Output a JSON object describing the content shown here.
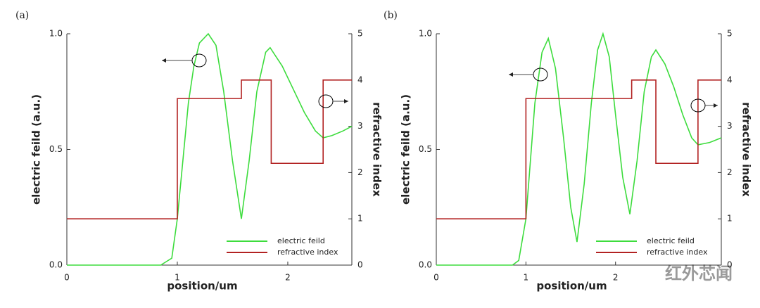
{
  "chart_data": [
    {
      "type": "line",
      "panel_label": "(a)",
      "x_label": "position/um",
      "y_label": "electric feild (a.u.)",
      "y2_label": "refractive index",
      "xlim": [
        0,
        2.58
      ],
      "xticks": [
        0,
        1,
        2
      ],
      "ylim": [
        0,
        1
      ],
      "yticks": [
        {
          "value": 0,
          "label": "0.0"
        },
        {
          "value": 0.5,
          "label": "0.5"
        },
        {
          "value": 1,
          "label": "1.0"
        }
      ],
      "y2lim": [
        0,
        5
      ],
      "y2ticks": [
        0,
        1,
        2,
        3,
        4,
        5
      ],
      "legend": "lower right",
      "series": [
        {
          "name": "electric feild",
          "color": "#3ddc3d",
          "x": [
            0,
            0.85,
            0.95,
            1.0,
            1.05,
            1.1,
            1.15,
            1.2,
            1.28,
            1.35,
            1.42,
            1.5,
            1.58,
            1.65,
            1.72,
            1.8,
            1.84,
            1.95,
            2.05,
            2.15,
            2.25,
            2.32,
            2.4,
            2.5,
            2.58
          ],
          "values": [
            0,
            0,
            0.03,
            0.2,
            0.45,
            0.7,
            0.86,
            0.96,
            1.0,
            0.95,
            0.75,
            0.45,
            0.2,
            0.45,
            0.75,
            0.92,
            0.94,
            0.86,
            0.76,
            0.66,
            0.58,
            0.55,
            0.56,
            0.58,
            0.6
          ]
        },
        {
          "name": "refractive index",
          "color": "#b22222",
          "axis": "y2",
          "x": [
            0,
            1,
            1,
            1.58,
            1.58,
            1.85,
            1.85,
            2.32,
            2.32,
            2.58
          ],
          "values": [
            1,
            1,
            3.6,
            3.6,
            4,
            4,
            2.2,
            2.2,
            4,
            4
          ]
        }
      ]
    },
    {
      "type": "line",
      "panel_label": "(b)",
      "x_label": "position/um",
      "y_label": "electric feild (a.u.)",
      "y2_label": "refractive index",
      "xlim": [
        0,
        3.18
      ],
      "xticks": [
        0,
        1,
        2
      ],
      "ylim": [
        0,
        1
      ],
      "yticks": [
        {
          "value": 0,
          "label": "0.0"
        },
        {
          "value": 0.5,
          "label": "0.5"
        },
        {
          "value": 1,
          "label": "1.0"
        }
      ],
      "y2lim": [
        0,
        5
      ],
      "y2ticks": [
        0,
        1,
        2,
        3,
        4,
        5
      ],
      "legend": "lower right",
      "series": [
        {
          "name": "electric feild",
          "color": "#3ddc3d",
          "x": [
            0,
            0.85,
            0.92,
            1.0,
            1.05,
            1.1,
            1.18,
            1.25,
            1.33,
            1.42,
            1.5,
            1.57,
            1.65,
            1.73,
            1.8,
            1.86,
            1.93,
            2.0,
            2.08,
            2.16,
            2.24,
            2.32,
            2.4,
            2.45,
            2.55,
            2.65,
            2.75,
            2.85,
            2.92,
            3.05,
            3.18
          ],
          "values": [
            0,
            0,
            0.02,
            0.2,
            0.45,
            0.7,
            0.92,
            0.98,
            0.85,
            0.55,
            0.25,
            0.1,
            0.35,
            0.7,
            0.93,
            1.0,
            0.9,
            0.65,
            0.38,
            0.22,
            0.45,
            0.75,
            0.9,
            0.93,
            0.87,
            0.77,
            0.65,
            0.55,
            0.52,
            0.53,
            0.55
          ]
        },
        {
          "name": "refractive index",
          "color": "#b22222",
          "axis": "y2",
          "x": [
            0,
            1,
            1,
            2.18,
            2.18,
            2.45,
            2.45,
            2.92,
            2.92,
            3.18
          ],
          "values": [
            1,
            1,
            3.6,
            3.6,
            4,
            4,
            2.2,
            2.2,
            4,
            4
          ]
        }
      ]
    }
  ],
  "watermark": "红外芯闻"
}
